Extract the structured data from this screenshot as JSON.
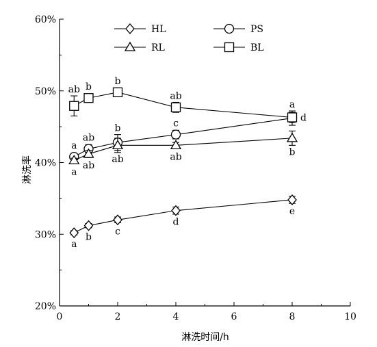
{
  "chart_data": {
    "type": "line",
    "xlabel": "淋洗时间/h",
    "ylabel": "淋洗率",
    "xlim": [
      0,
      10
    ],
    "ylim": [
      20,
      60
    ],
    "xticks": [
      "0",
      "2",
      "4",
      "6",
      "8",
      "10"
    ],
    "yticks": [
      "20%",
      "30%",
      "40%",
      "50%",
      "60%"
    ],
    "x": [
      0.5,
      1,
      2,
      4,
      8
    ],
    "grid": false,
    "legend_position": "top",
    "series": [
      {
        "name": "HL",
        "marker": "diamond",
        "values": [
          30.2,
          31.2,
          32.0,
          33.3,
          34.8
        ],
        "errors": [
          0.3,
          0.3,
          0.4,
          0.5,
          0.5
        ],
        "labels": [
          "a",
          "b",
          "c",
          "d",
          "e"
        ]
      },
      {
        "name": "PS",
        "marker": "circle",
        "values": [
          40.8,
          41.9,
          42.8,
          43.9,
          46.2
        ],
        "errors": [
          0.4,
          0.6,
          1.1,
          0.6,
          1.0
        ],
        "labels": [
          "a",
          "ab",
          "b",
          "c",
          "a"
        ]
      },
      {
        "name": "RL",
        "marker": "triangle",
        "values": [
          40.3,
          41.2,
          42.4,
          42.4,
          43.4
        ],
        "errors": [
          0.3,
          0.5,
          1.0,
          0.4,
          1.0
        ],
        "labels": [
          "a",
          "ab",
          "ab",
          "ab",
          "b"
        ]
      },
      {
        "name": "BL",
        "marker": "square",
        "values": [
          47.9,
          49.0,
          49.8,
          47.7,
          46.3
        ],
        "errors": [
          1.4,
          0.6,
          0.5,
          0.7,
          0.7
        ],
        "labels": [
          "ab",
          "b",
          "b",
          "ab",
          "d"
        ]
      }
    ]
  }
}
